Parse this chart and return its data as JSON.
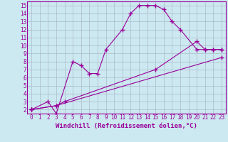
{
  "background_color": "#cce8f0",
  "grid_color": "#aabbcc",
  "line_color": "#990099",
  "marker": "+",
  "xlabel": "Windchill (Refroidissement éolien,°C)",
  "xlabel_fontsize": 6.5,
  "ytick_fontsize": 5.5,
  "xtick_fontsize": 5.5,
  "xlim": [
    -0.5,
    23.5
  ],
  "ylim": [
    1.5,
    15.5
  ],
  "yticks": [
    2,
    3,
    4,
    5,
    6,
    7,
    8,
    9,
    10,
    11,
    12,
    13,
    14,
    15
  ],
  "xticks": [
    0,
    1,
    2,
    3,
    4,
    5,
    6,
    7,
    8,
    9,
    10,
    11,
    12,
    13,
    14,
    15,
    16,
    17,
    18,
    19,
    20,
    21,
    22,
    23
  ],
  "series": [
    {
      "x": [
        0,
        2,
        3,
        5,
        6,
        7,
        8,
        9,
        11,
        12,
        13,
        14,
        15,
        16,
        17,
        18,
        20,
        21,
        22,
        23
      ],
      "y": [
        2,
        3,
        1.5,
        8,
        7.5,
        6.5,
        6.5,
        9.5,
        12,
        14,
        15,
        15,
        15,
        14.5,
        13,
        12,
        9.5,
        9.5,
        9.5,
        9.5
      ]
    },
    {
      "x": [
        0,
        3,
        4,
        15,
        20,
        21,
        22,
        23
      ],
      "y": [
        2,
        2.5,
        3,
        7,
        10.5,
        9.5,
        9.5,
        9.5
      ]
    },
    {
      "x": [
        0,
        3,
        23
      ],
      "y": [
        2,
        2.5,
        8.5
      ]
    }
  ]
}
